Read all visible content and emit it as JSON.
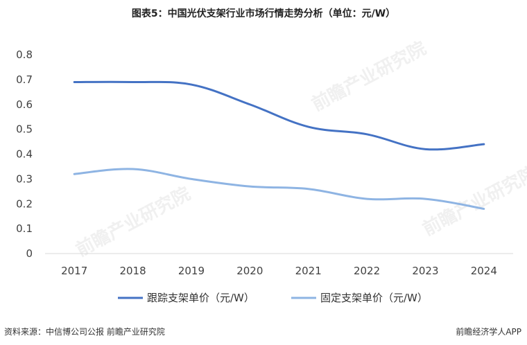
{
  "title": "图表5：中国光伏支架行业市场行情走势分析（单位：元/W）",
  "footer": {
    "source": "资料来源：中信博公司公报 前瞻产业研究院",
    "brand": "前瞻经济学人APP"
  },
  "watermark": "前瞻产业研究院",
  "colors": {
    "tracking": "#4472C4",
    "fixed": "#8EB4E3",
    "axis": "#d9d9d9"
  },
  "chart_data": {
    "type": "line",
    "title": "图表5：中国光伏支架行业市场行情走势分析（单位：元/W）",
    "categories": [
      "2017",
      "2018",
      "2019",
      "2020",
      "2021",
      "2022",
      "2023",
      "2024"
    ],
    "ylim": [
      0,
      0.8
    ],
    "yticks": [
      "0",
      "0.1",
      "0.2",
      "0.3",
      "0.4",
      "0.5",
      "0.6",
      "0.7",
      "0.8"
    ],
    "grid": false,
    "legend": "bottom",
    "series": [
      {
        "name": "跟踪支架单价（元/W）",
        "values": [
          0.69,
          0.69,
          0.68,
          0.6,
          0.51,
          0.48,
          0.42,
          0.44
        ]
      },
      {
        "name": "固定支架单价（元/W）",
        "values": [
          0.32,
          0.34,
          0.3,
          0.27,
          0.26,
          0.22,
          0.22,
          0.18
        ]
      }
    ]
  }
}
